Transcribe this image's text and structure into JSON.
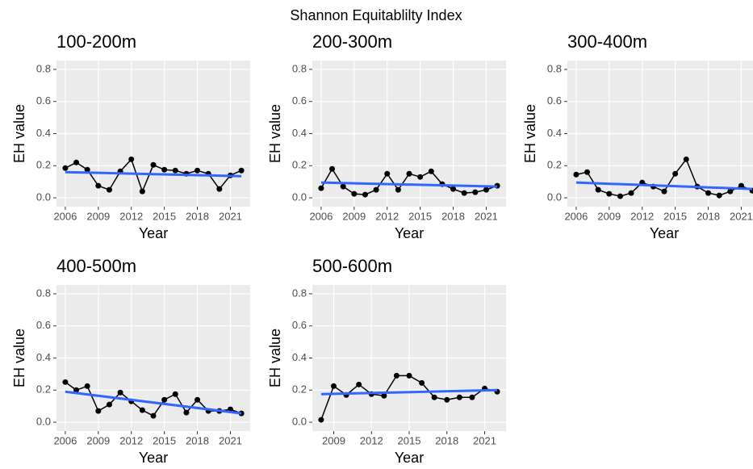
{
  "title": "Shannon Equitablilty Index",
  "chart_data": [
    {
      "type": "line",
      "title": "100-200m",
      "x_label": "Year",
      "y_label": "EH value",
      "x": [
        2006,
        2007,
        2008,
        2009,
        2010,
        2011,
        2012,
        2013,
        2014,
        2015,
        2016,
        2017,
        2018,
        2019,
        2020,
        2021,
        2022
      ],
      "values": [
        0.185,
        0.22,
        0.175,
        0.075,
        0.05,
        0.165,
        0.24,
        0.04,
        0.205,
        0.175,
        0.17,
        0.15,
        0.17,
        0.15,
        0.055,
        0.14,
        0.17
      ],
      "color": "#000000",
      "trend": {
        "x": [
          2006,
          2022
        ],
        "values": [
          0.16,
          0.135
        ],
        "color": "#3366ff"
      },
      "xlim": [
        2005.2,
        2022.8
      ],
      "xticks": [
        2006,
        2009,
        2012,
        2015,
        2018,
        2021
      ],
      "ylim": [
        -0.055,
        0.855
      ],
      "yticks": [
        {
          "value": 0,
          "label": "0.0"
        },
        0.2,
        0.4,
        0.6,
        0.8
      ],
      "grid": true
    },
    {
      "type": "line",
      "title": "200-300m",
      "x_label": "Year",
      "y_label": "EH value",
      "x": [
        2006,
        2007,
        2008,
        2009,
        2010,
        2011,
        2012,
        2013,
        2014,
        2015,
        2016,
        2017,
        2018,
        2019,
        2020,
        2021,
        2022
      ],
      "values": [
        0.06,
        0.18,
        0.07,
        0.025,
        0.02,
        0.05,
        0.15,
        0.05,
        0.15,
        0.13,
        0.165,
        0.085,
        0.055,
        0.03,
        0.035,
        0.05,
        0.075
      ],
      "color": "#000000",
      "trend": {
        "x": [
          2006,
          2022
        ],
        "values": [
          0.095,
          0.07
        ],
        "color": "#3366ff"
      },
      "xlim": [
        2005.2,
        2022.8
      ],
      "xticks": [
        2006,
        2009,
        2012,
        2015,
        2018,
        2021
      ],
      "ylim": [
        -0.055,
        0.855
      ],
      "yticks": [
        {
          "value": 0,
          "label": "0.0"
        },
        0.2,
        0.4,
        0.6,
        0.8
      ],
      "grid": true
    },
    {
      "type": "line",
      "title": "300-400m",
      "x_label": "Year",
      "y_label": "EH value",
      "x": [
        2006,
        2007,
        2008,
        2009,
        2010,
        2011,
        2012,
        2013,
        2014,
        2015,
        2016,
        2017,
        2018,
        2019,
        2020,
        2021,
        2022
      ],
      "values": [
        0.145,
        0.16,
        0.05,
        0.025,
        0.01,
        0.03,
        0.095,
        0.07,
        0.04,
        0.15,
        0.24,
        0.07,
        0.03,
        0.015,
        0.04,
        0.075,
        0.045
      ],
      "color": "#000000",
      "trend": {
        "x": [
          2006,
          2022
        ],
        "values": [
          0.095,
          0.055
        ],
        "color": "#3366ff"
      },
      "xlim": [
        2005.2,
        2022.8
      ],
      "xticks": [
        2006,
        2009,
        2012,
        2015,
        2018,
        2021
      ],
      "ylim": [
        -0.055,
        0.855
      ],
      "yticks": [
        {
          "value": 0,
          "label": "0.0"
        },
        0.2,
        0.4,
        0.6,
        0.8
      ],
      "grid": true
    },
    {
      "type": "line",
      "title": "400-500m",
      "x_label": "Year",
      "y_label": "EH value",
      "x": [
        2006,
        2007,
        2008,
        2009,
        2010,
        2011,
        2012,
        2013,
        2014,
        2015,
        2016,
        2017,
        2018,
        2019,
        2020,
        2021,
        2022
      ],
      "values": [
        0.25,
        0.2,
        0.225,
        0.07,
        0.11,
        0.185,
        0.13,
        0.075,
        0.04,
        0.14,
        0.175,
        0.06,
        0.14,
        0.07,
        0.07,
        0.08,
        0.055
      ],
      "color": "#000000",
      "trend": {
        "x": [
          2006,
          2022
        ],
        "values": [
          0.19,
          0.055
        ],
        "color": "#3366ff"
      },
      "xlim": [
        2005.2,
        2022.8
      ],
      "xticks": [
        2006,
        2009,
        2012,
        2015,
        2018,
        2021
      ],
      "ylim": [
        -0.055,
        0.855
      ],
      "yticks": [
        {
          "value": 0,
          "label": "0.0"
        },
        0.2,
        0.4,
        0.6,
        0.8
      ],
      "grid": true
    },
    {
      "type": "line",
      "title": "500-600m",
      "x_label": "Year",
      "y_label": "EH value",
      "x": [
        2008,
        2009,
        2010,
        2011,
        2012,
        2013,
        2014,
        2015,
        2016,
        2017,
        2018,
        2019,
        2020,
        2021,
        2022
      ],
      "values": [
        0.015,
        0.225,
        0.17,
        0.235,
        0.175,
        0.165,
        0.29,
        0.29,
        0.245,
        0.155,
        0.14,
        0.155,
        0.155,
        0.21,
        0.19
      ],
      "color": "#000000",
      "trend": {
        "x": [
          2008,
          2022
        ],
        "values": [
          0.175,
          0.2
        ],
        "color": "#3366ff"
      },
      "xlim": [
        2007.3,
        2022.7
      ],
      "xticks": [
        2009,
        2012,
        2015,
        2018,
        2021
      ],
      "ylim": [
        -0.055,
        0.855
      ],
      "yticks": [
        {
          "value": 0,
          "label": "0.0"
        },
        0.2,
        0.4,
        0.6,
        0.8
      ],
      "grid": true
    }
  ]
}
